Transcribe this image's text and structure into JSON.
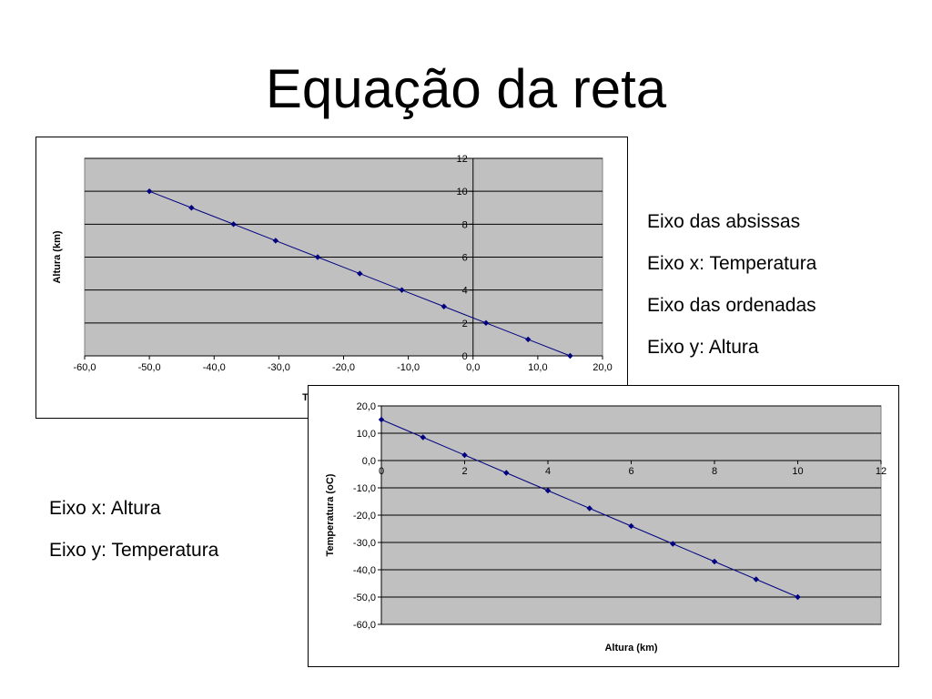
{
  "title": "Equação da reta",
  "notes_right": [
    "Eixo das absissas",
    "Eixo x: Temperatura",
    "Eixo das ordenadas",
    "Eixo y: Altura"
  ],
  "notes_left": [
    "Eixo x: Altura",
    "Eixo y: Temperatura"
  ],
  "colors": {
    "plot_bg": "#c0c0c0",
    "series": "#000080",
    "grid": "#000000"
  },
  "chart_data": [
    {
      "type": "scatter",
      "xlabel": "Temperatura (oC)",
      "ylabel": "Altura (km)",
      "xlim": [
        -60,
        20
      ],
      "ylim": [
        0,
        12
      ],
      "x_ticks": [
        "-60,0",
        "-50,0",
        "-40,0",
        "-30,0",
        "-20,0",
        "-10,0",
        "0,0",
        "10,0",
        "20,0"
      ],
      "y_ticks": [
        "0",
        "2",
        "4",
        "6",
        "8",
        "10",
        "12"
      ],
      "grid": "horizontal",
      "series": [
        {
          "x": [
            15,
            8.5,
            2,
            -4.5,
            -11,
            -17.5,
            -24,
            -30.5,
            -37,
            -43.5,
            -50
          ],
          "y": [
            0,
            1,
            2,
            3,
            4,
            5,
            6,
            7,
            8,
            9,
            10
          ]
        }
      ]
    },
    {
      "type": "scatter",
      "xlabel": "Altura (km)",
      "ylabel": "Temperatura (oC)",
      "xlim": [
        0,
        12
      ],
      "ylim": [
        -60,
        20
      ],
      "x_ticks": [
        "0",
        "2",
        "4",
        "6",
        "8",
        "10",
        "12"
      ],
      "y_ticks": [
        "-60,0",
        "-50,0",
        "-40,0",
        "-30,0",
        "-20,0",
        "-10,0",
        "0,0",
        "10,0",
        "20,0"
      ],
      "grid": "horizontal",
      "series": [
        {
          "x": [
            0,
            1,
            2,
            3,
            4,
            5,
            6,
            7,
            8,
            9,
            10
          ],
          "y": [
            15,
            8.5,
            2,
            -4.5,
            -11,
            -17.5,
            -24,
            -30.5,
            -37,
            -43.5,
            -50
          ]
        }
      ]
    }
  ]
}
